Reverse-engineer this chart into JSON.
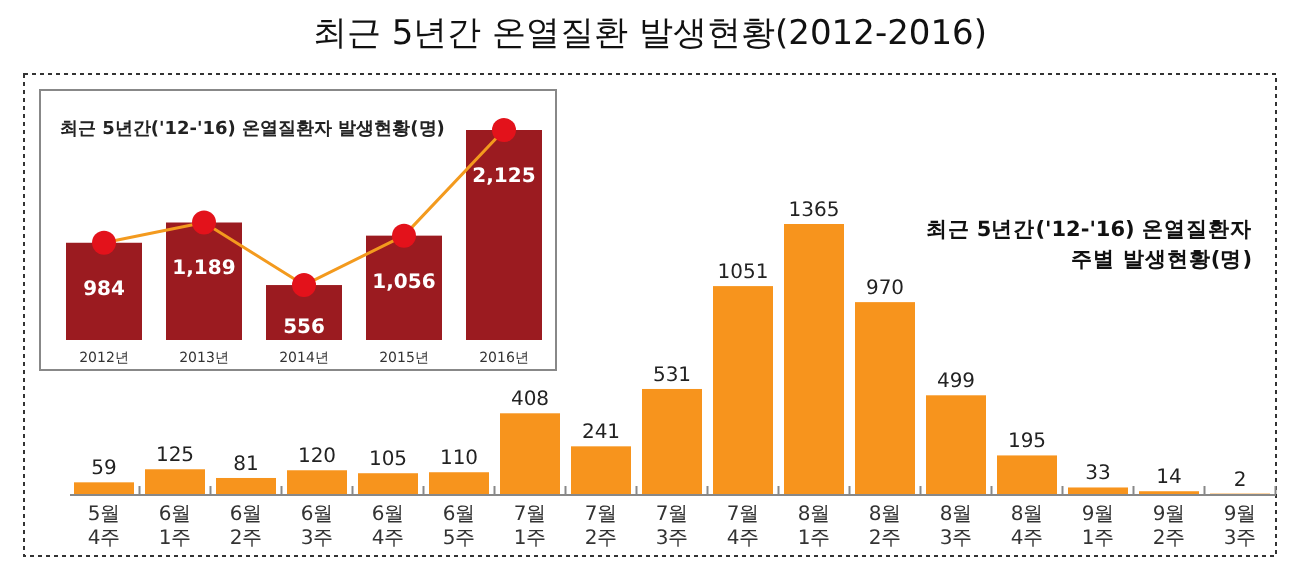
{
  "chart_data": [
    {
      "type": "bar",
      "title": "최근 5년간 온열질환 발생현황(2012-2016)",
      "subtitle": "최근 5년간('12-'16) 온열질환자 주별 발생현황(명)",
      "categories": [
        "5월 4주",
        "6월 1주",
        "6월 2주",
        "6월 3주",
        "6월 4주",
        "6월 5주",
        "7월 1주",
        "7월 2주",
        "7월 3주",
        "7월 4주",
        "8월 1주",
        "8월 2주",
        "8월 3주",
        "8월 4주",
        "9월 1주",
        "9월 2주",
        "9월 3주"
      ],
      "values": [
        59,
        125,
        81,
        120,
        105,
        110,
        408,
        241,
        531,
        1051,
        1365,
        970,
        499,
        195,
        33,
        14,
        2
      ],
      "color": "#f7941d",
      "value_labels": [
        "59",
        "125",
        "81",
        "120",
        "105",
        "110",
        "408",
        "241",
        "531",
        "1051",
        "1365",
        "970",
        "499",
        "195",
        "33",
        "14",
        "2"
      ]
    },
    {
      "type": "bar",
      "title": "최근 5년간('12-'16) 온열질환자 발생현황(명)",
      "categories": [
        "2012년",
        "2013년",
        "2014년",
        "2015년",
        "2016년"
      ],
      "series": [
        {
          "type": "bar",
          "color": "#9b1b20",
          "values": [
            984,
            1189,
            556,
            1056,
            2125
          ],
          "value_labels": [
            "984",
            "1,189",
            "556",
            "1,056",
            "2,125"
          ]
        },
        {
          "type": "line",
          "color": "#f39a1e",
          "values": [
            984,
            1189,
            556,
            1056,
            2125
          ]
        }
      ],
      "marker": "circle"
    }
  ]
}
